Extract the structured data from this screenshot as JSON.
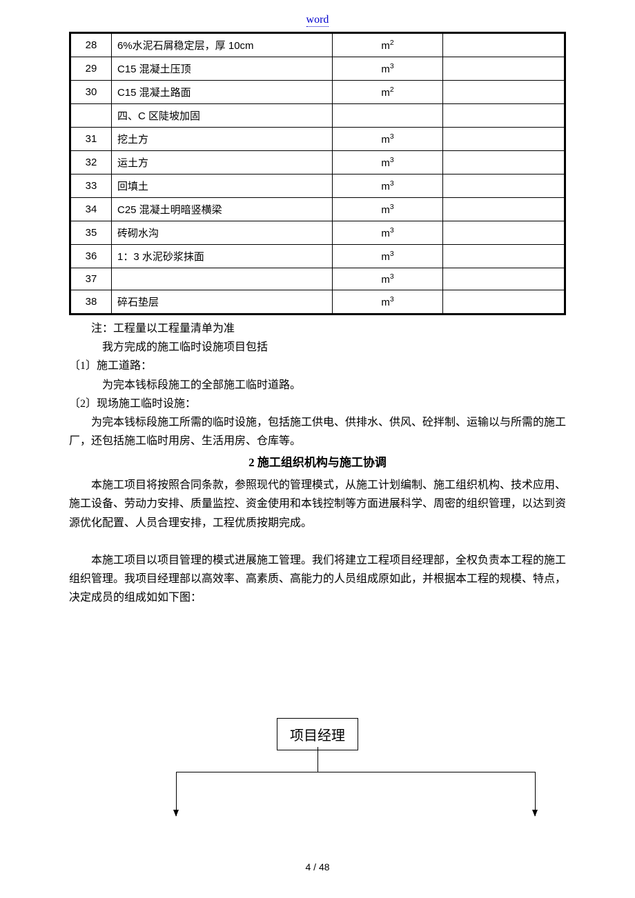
{
  "header": {
    "word": "word"
  },
  "table": {
    "rows": [
      {
        "num": "28",
        "desc": "6%水泥石屑稳定层，厚 10cm",
        "unit_base": "m",
        "unit_sup": "2"
      },
      {
        "num": "29",
        "desc": "C15 混凝土压顶",
        "unit_base": "m",
        "unit_sup": "3"
      },
      {
        "num": "30",
        "desc": "C15 混凝土路面",
        "unit_base": "m",
        "unit_sup": "2"
      },
      {
        "num": "",
        "desc": "四、C 区陡坡加固",
        "unit_base": "",
        "unit_sup": ""
      },
      {
        "num": "31",
        "desc": "挖土方",
        "unit_base": "m",
        "unit_sup": "3"
      },
      {
        "num": "32",
        "desc": "运土方",
        "unit_base": "m",
        "unit_sup": "3"
      },
      {
        "num": "33",
        "desc": "回填土",
        "unit_base": "m",
        "unit_sup": "3"
      },
      {
        "num": "34",
        "desc": "C25 混凝土明暗竖横梁",
        "unit_base": "m",
        "unit_sup": "3"
      },
      {
        "num": "35",
        "desc": "砖砌水沟",
        "unit_base": "m",
        "unit_sup": "3"
      },
      {
        "num": "36",
        "desc": "1：3 水泥砂浆抹面",
        "unit_base": "m",
        "unit_sup": "3"
      },
      {
        "num": "37",
        "desc": "",
        "unit_base": "m",
        "unit_sup": "3"
      },
      {
        "num": "38",
        "desc": "碎石垫层",
        "unit_base": "m",
        "unit_sup": "3"
      }
    ]
  },
  "text": {
    "note1": "注：工程量以工程量清单为准",
    "note2": "我方完成的施工临时设施项目包括",
    "item1_label": "〔1〕施工道路：",
    "item1_body": "为完本钱标段施工的全部施工临时道路。",
    "item2_label": "〔2〕现场施工临时设施：",
    "item2_body": "为完本钱标段施工所需的临时设施，包括施工供电、供排水、供风、砼拌制、运输以与所需的施工厂，还包括施工临时用房、生活用房、仓库等。",
    "section_title": "2  施工组织机构与施工协调",
    "para1": "本施工项目将按照合同条款，参照现代的管理模式，从施工计划编制、施工组织机构、技术应用、施工设备、劳动力安排、质量监控、资金使用和本钱控制等方面进展科学、周密的组织管理，以达到资源优化配置、人员合理安排，工程优质按期完成。",
    "para2": "本施工项目以项目管理的模式进展施工管理。我们将建立工程项目经理部，全权负责本工程的施工组织管理。我项目经理部以高效率、高素质、高能力的人员组成原如此，并根据本工程的规模、特点，决定成员的组成如如下图："
  },
  "diagram": {
    "pm_label": "项目经理"
  },
  "footer": {
    "page": "4 / 48"
  }
}
